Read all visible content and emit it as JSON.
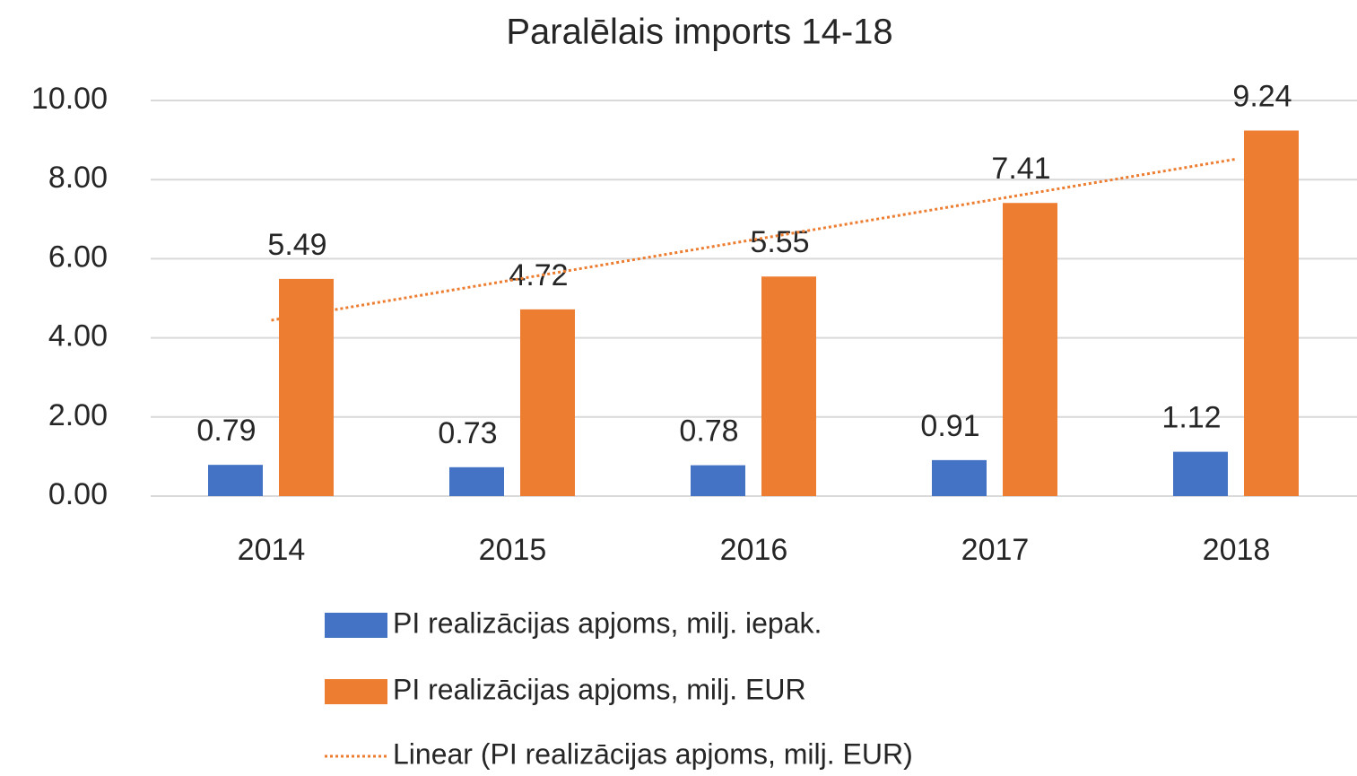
{
  "chart_data": {
    "type": "bar",
    "title": "Paralēlais imports 14-18",
    "categories": [
      "2014",
      "2015",
      "2016",
      "2017",
      "2018"
    ],
    "series": [
      {
        "name": "PI realizācijas apjoms, milj. iepak.",
        "color": "#4472c4",
        "values": [
          0.79,
          0.73,
          0.78,
          0.91,
          1.12
        ]
      },
      {
        "name": "PI realizācijas apjoms, milj. EUR",
        "color": "#ed7d31",
        "values": [
          5.49,
          4.72,
          5.55,
          7.41,
          9.24
        ]
      }
    ],
    "trendline": {
      "name": "Linear (PI realizācijas apjoms, milj. EUR)",
      "series": 1,
      "color": "#ed7d31"
    },
    "ylim": [
      0,
      10
    ],
    "yticks": [
      {
        "value": 0,
        "label": "0.00"
      },
      {
        "value": 2,
        "label": "2.00"
      },
      {
        "value": 4,
        "label": "4.00"
      },
      {
        "value": 6,
        "label": "6.00"
      },
      {
        "value": 8,
        "label": "8.00"
      },
      {
        "value": 10,
        "label": "10.00"
      }
    ],
    "grid": true,
    "legend": "bottom"
  }
}
